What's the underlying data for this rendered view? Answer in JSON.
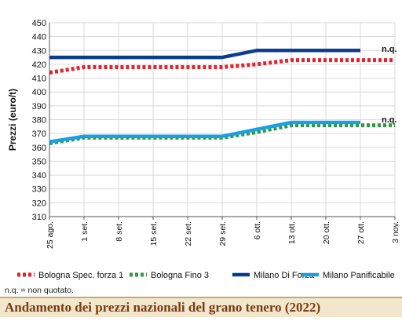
{
  "chart_data": {
    "type": "line",
    "title": "Andamento dei prezzi nazionali del grano tenero (2022)",
    "ylabel": "Prezzi (euro/t)",
    "xlabel": "",
    "ylim": [
      310,
      450
    ],
    "yticks": [
      310,
      320,
      330,
      340,
      350,
      360,
      370,
      380,
      390,
      400,
      410,
      420,
      430,
      440,
      450
    ],
    "categories": [
      "25 ago.",
      "1 set.",
      "8 set.",
      "15 set.",
      "22 set.",
      "29 set.",
      "6 ott.",
      "13 ott.",
      "20 ott.",
      "27 ott.",
      "3 nov."
    ],
    "grid": true,
    "legend_position": "bottom",
    "series": [
      {
        "name": "Bologna Spec. forza 1",
        "color": "#e8202a",
        "style": "dotted",
        "values": [
          414,
          418,
          418,
          418,
          418,
          418,
          420,
          423,
          423,
          423,
          423
        ]
      },
      {
        "name": "Bologna Fino 3",
        "color": "#2e9a3e",
        "style": "dotted",
        "values": [
          363,
          367,
          367,
          367,
          367,
          367,
          371,
          376,
          376,
          376,
          376
        ]
      },
      {
        "name": "Milano Di Forza",
        "color": "#0a3d8f",
        "style": "solid",
        "values": [
          425,
          425,
          425,
          425,
          425,
          425,
          430,
          430,
          430,
          430,
          null
        ]
      },
      {
        "name": "Milano Panificabile",
        "color": "#1aa0e0",
        "style": "solid",
        "values": [
          364,
          368,
          368,
          368,
          368,
          368,
          373,
          378,
          378,
          378,
          null
        ]
      }
    ],
    "annotations": [
      "n.q.",
      "n.q."
    ]
  },
  "footnote": "n.q. = non quotato."
}
